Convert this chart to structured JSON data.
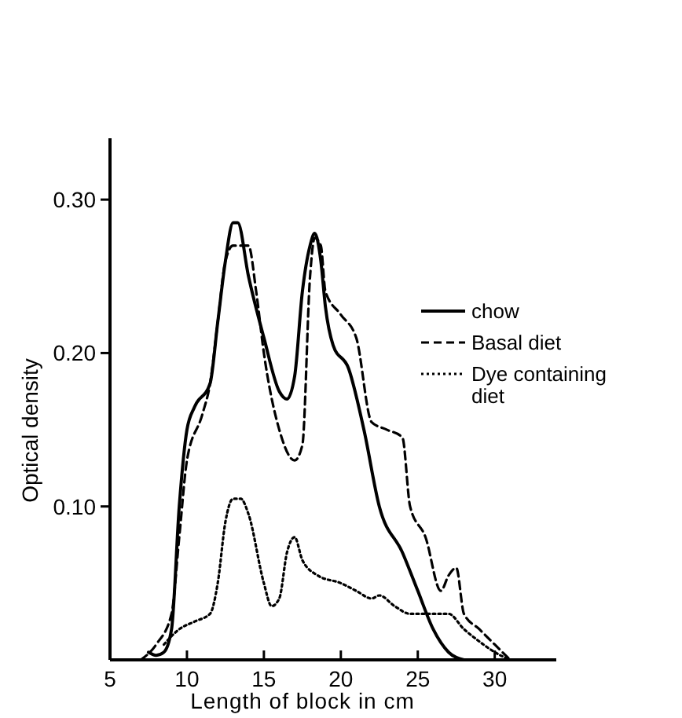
{
  "chart_data": {
    "type": "line",
    "xlabel": "Length of block in cm",
    "ylabel": "Optical density",
    "xlim": [
      5,
      34
    ],
    "ylim": [
      0,
      0.34
    ],
    "xticks": [
      5,
      10,
      15,
      20,
      25,
      30
    ],
    "yticks": [
      {
        "value": 0.1,
        "label": "0.10"
      },
      {
        "value": 0.2,
        "label": "0.20"
      },
      {
        "value": 0.3,
        "label": "0.30"
      }
    ],
    "legend": "right",
    "grid": false,
    "marker": "none",
    "series": [
      {
        "name": "chow",
        "color": "#000000",
        "line_style": "solid",
        "x": [
          7.5,
          8,
          8.5,
          9,
          9.5,
          10,
          10.5,
          11.5,
          12,
          12.5,
          13,
          13.3,
          14,
          15,
          16,
          16.5,
          17,
          17.5,
          18,
          18.3,
          18.7,
          19,
          19.5,
          20.5,
          21.5,
          22.5,
          24,
          25,
          26,
          27,
          28
        ],
        "values": [
          0.005,
          0.003,
          0.005,
          0.02,
          0.1,
          0.15,
          0.165,
          0.18,
          0.22,
          0.26,
          0.285,
          0.285,
          0.25,
          0.21,
          0.175,
          0.17,
          0.185,
          0.24,
          0.27,
          0.278,
          0.26,
          0.23,
          0.205,
          0.19,
          0.15,
          0.1,
          0.07,
          0.045,
          0.02,
          0.005,
          0
        ]
      },
      {
        "name": "Basal diet",
        "color": "#000000",
        "line_style": "dashed",
        "x": [
          7,
          8,
          9,
          9.5,
          10,
          11,
          11.5,
          12,
          12.5,
          13,
          14,
          14.5,
          15,
          16,
          17,
          17.5,
          18,
          18.3,
          18.7,
          19,
          20,
          21,
          22,
          23,
          24,
          24.5,
          25.5,
          26.5,
          27,
          27.5,
          28,
          29,
          30,
          31
        ],
        "values": [
          0,
          0.01,
          0.03,
          0.08,
          0.13,
          0.16,
          0.18,
          0.22,
          0.26,
          0.27,
          0.27,
          0.24,
          0.2,
          0.15,
          0.13,
          0.14,
          0.25,
          0.275,
          0.27,
          0.24,
          0.225,
          0.21,
          0.155,
          0.15,
          0.145,
          0.1,
          0.08,
          0.045,
          0.055,
          0.06,
          0.03,
          0.02,
          0.01,
          0
        ]
      },
      {
        "name": "Dye containing diet",
        "color": "#000000",
        "line_style": "dotted",
        "x": [
          8.5,
          9.5,
          10.5,
          11.5,
          12,
          12.5,
          13,
          13.5,
          14,
          15,
          15.5,
          16,
          16.5,
          17,
          17.5,
          18.5,
          20,
          21,
          22,
          22.5,
          23.5,
          24.5,
          26,
          27,
          28,
          29,
          30,
          31
        ],
        "values": [
          0.01,
          0.02,
          0.025,
          0.03,
          0.05,
          0.09,
          0.105,
          0.105,
          0.095,
          0.05,
          0.035,
          0.04,
          0.07,
          0.08,
          0.065,
          0.055,
          0.05,
          0.045,
          0.04,
          0.042,
          0.035,
          0.03,
          0.03,
          0.03,
          0.02,
          0.012,
          0.005,
          0
        ]
      }
    ]
  }
}
